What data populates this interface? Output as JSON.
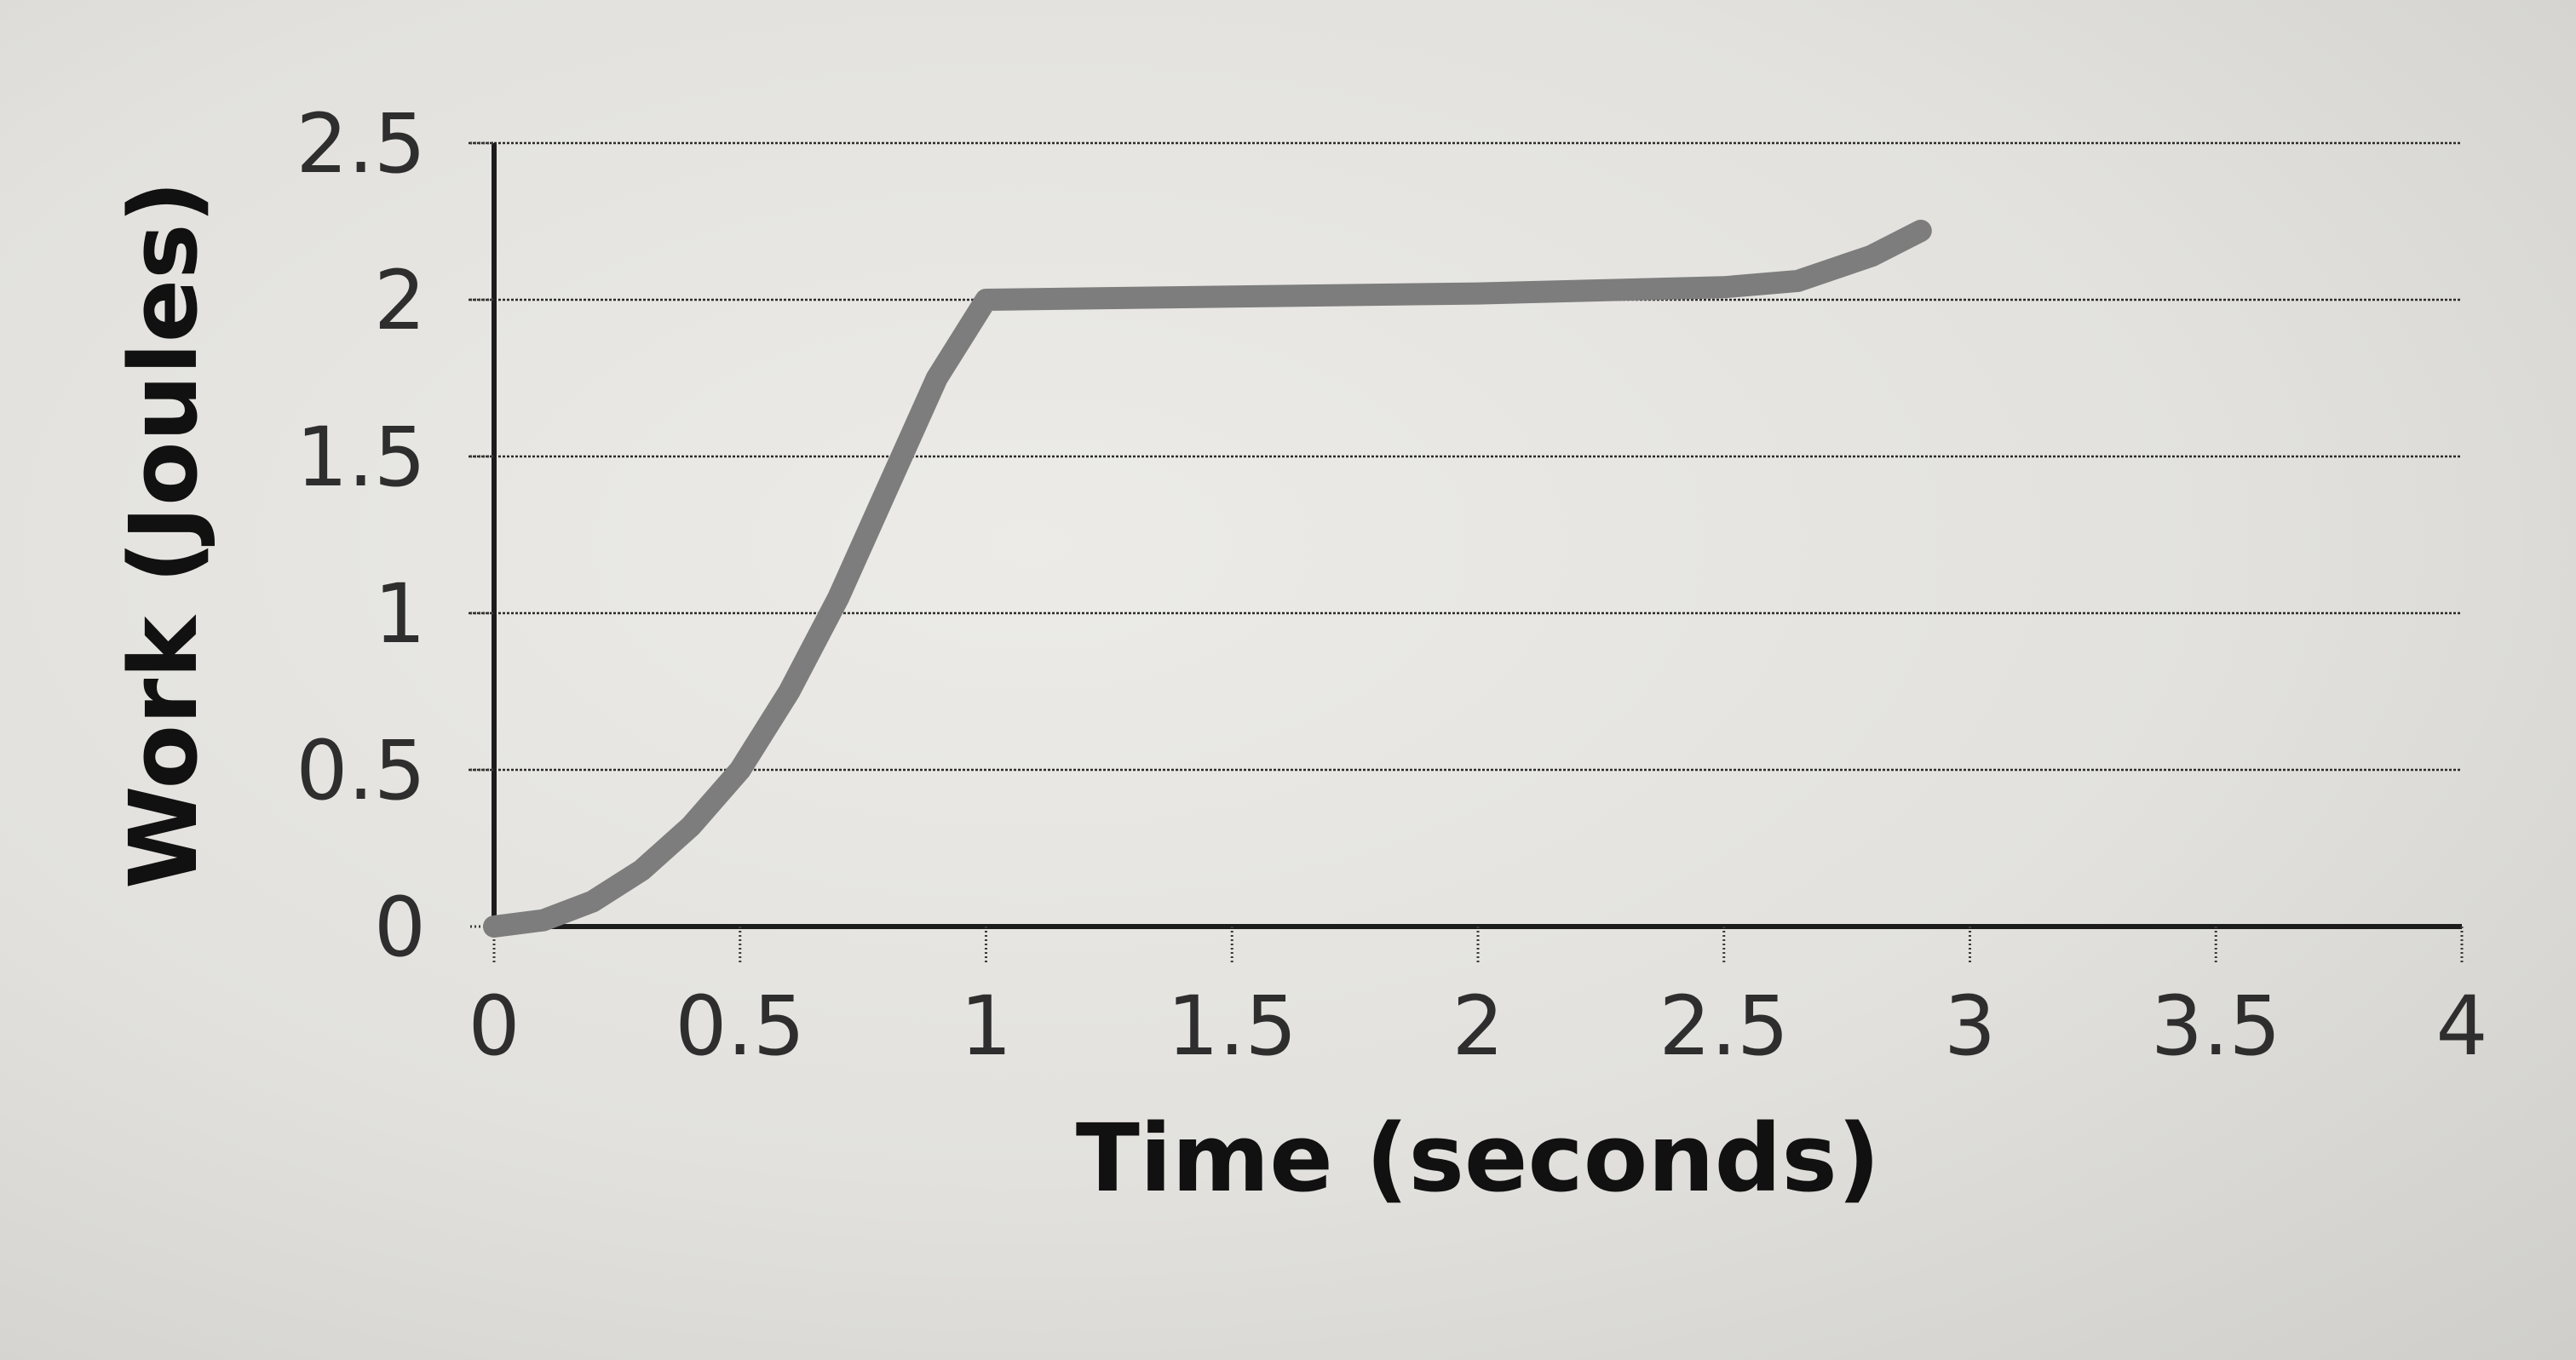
{
  "chart_data": {
    "type": "line",
    "title": "",
    "xlabel": "Time (seconds)",
    "ylabel": "Work (Joules)",
    "xlim": [
      0,
      4
    ],
    "ylim": [
      0,
      2.5
    ],
    "x_ticks": [
      "0",
      "0.5",
      "1",
      "1.5",
      "2",
      "2.5",
      "3",
      "3.5",
      "4"
    ],
    "y_ticks": [
      "0",
      "0.5",
      "1",
      "1.5",
      "2",
      "2.5"
    ],
    "grid": "horizontal dashed",
    "series": [
      {
        "color": "#7d7d7d",
        "x": [
          0,
          0.1,
          0.2,
          0.3,
          0.4,
          0.5,
          0.6,
          0.7,
          0.8,
          0.9,
          1.0,
          1.5,
          2.0,
          2.5,
          2.65,
          2.8,
          2.9
        ],
        "y": [
          0,
          0.02,
          0.08,
          0.18,
          0.32,
          0.5,
          0.75,
          1.05,
          1.4,
          1.75,
          2.0,
          2.01,
          2.02,
          2.04,
          2.06,
          2.14,
          2.22
        ]
      }
    ]
  }
}
